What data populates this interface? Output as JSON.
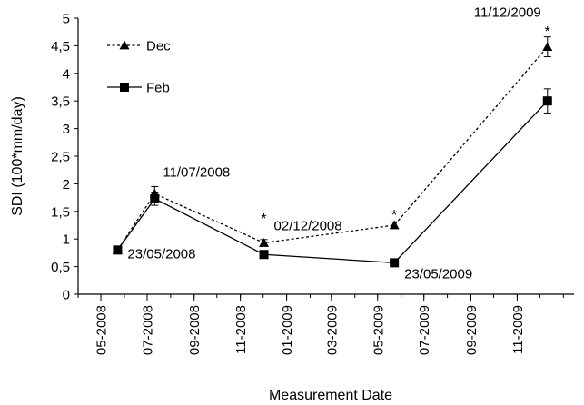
{
  "chart_data": {
    "type": "line",
    "xlabel": "Measurement Date",
    "ylabel": "SDI (100*mm/day)",
    "x_date_range": [
      "2008-04-01",
      "2010-01-15"
    ],
    "ylim": [
      0,
      5
    ],
    "y_ticks": [
      0,
      0.5,
      1,
      1.5,
      2,
      2.5,
      3,
      3.5,
      4,
      4.5,
      5
    ],
    "y_tick_labels": [
      "0",
      "0,5",
      "1",
      "1,5",
      "2",
      "2,5",
      "3",
      "3,5",
      "4",
      "4,5",
      "5"
    ],
    "x_ticks": [
      {
        "date": "2008-05-01",
        "label": "05-2008"
      },
      {
        "date": "2008-07-01",
        "label": "07-2008"
      },
      {
        "date": "2008-09-01",
        "label": "09-2008"
      },
      {
        "date": "2008-11-01",
        "label": "11-2008"
      },
      {
        "date": "2009-01-01",
        "label": "01-2009"
      },
      {
        "date": "2009-03-01",
        "label": "03-2009"
      },
      {
        "date": "2009-05-01",
        "label": "05-2009"
      },
      {
        "date": "2009-07-01",
        "label": "07-2009"
      },
      {
        "date": "2009-09-01",
        "label": "09-2009"
      },
      {
        "date": "2009-11-01",
        "label": "11-2009"
      }
    ],
    "grid": false,
    "legend": "top-left",
    "series": [
      {
        "name": "Dec",
        "marker": "triangle",
        "line_style": "dashed",
        "points": [
          {
            "date": "2008-05-23",
            "y": 0.8,
            "err": 0.04
          },
          {
            "date": "2008-07-11",
            "y": 1.82,
            "err": 0.13
          },
          {
            "date": "2008-12-02",
            "y": 0.93,
            "err": 0.06
          },
          {
            "date": "2009-05-23",
            "y": 1.25,
            "err": 0.06
          },
          {
            "date": "2009-12-11",
            "y": 4.48,
            "err": 0.18
          }
        ]
      },
      {
        "name": "Feb",
        "marker": "square",
        "line_style": "solid",
        "points": [
          {
            "date": "2008-05-23",
            "y": 0.8,
            "err": 0.04
          },
          {
            "date": "2008-07-11",
            "y": 1.73,
            "err": 0.12
          },
          {
            "date": "2008-12-02",
            "y": 0.72,
            "err": 0.06
          },
          {
            "date": "2009-05-23",
            "y": 0.57,
            "err": 0.07
          },
          {
            "date": "2009-12-11",
            "y": 3.5,
            "err": 0.22
          }
        ]
      }
    ],
    "annotations": [
      {
        "text": "23/05/2008",
        "date": "2008-05-23",
        "y": 0.8
      },
      {
        "text": "11/07/2008",
        "date": "2008-07-11",
        "y": 1.82
      },
      {
        "text": "02/12/2008",
        "date": "2008-12-02",
        "y": 0.93
      },
      {
        "text": "23/05/2009",
        "date": "2009-05-23",
        "y": 0.57
      },
      {
        "text": "11/12/2009",
        "date": "2009-12-11",
        "y": 4.48
      }
    ],
    "significance_markers": [
      {
        "text": "*",
        "date": "2008-12-02"
      },
      {
        "text": "*",
        "date": "2009-05-23"
      },
      {
        "text": "*",
        "date": "2009-12-11"
      }
    ]
  }
}
